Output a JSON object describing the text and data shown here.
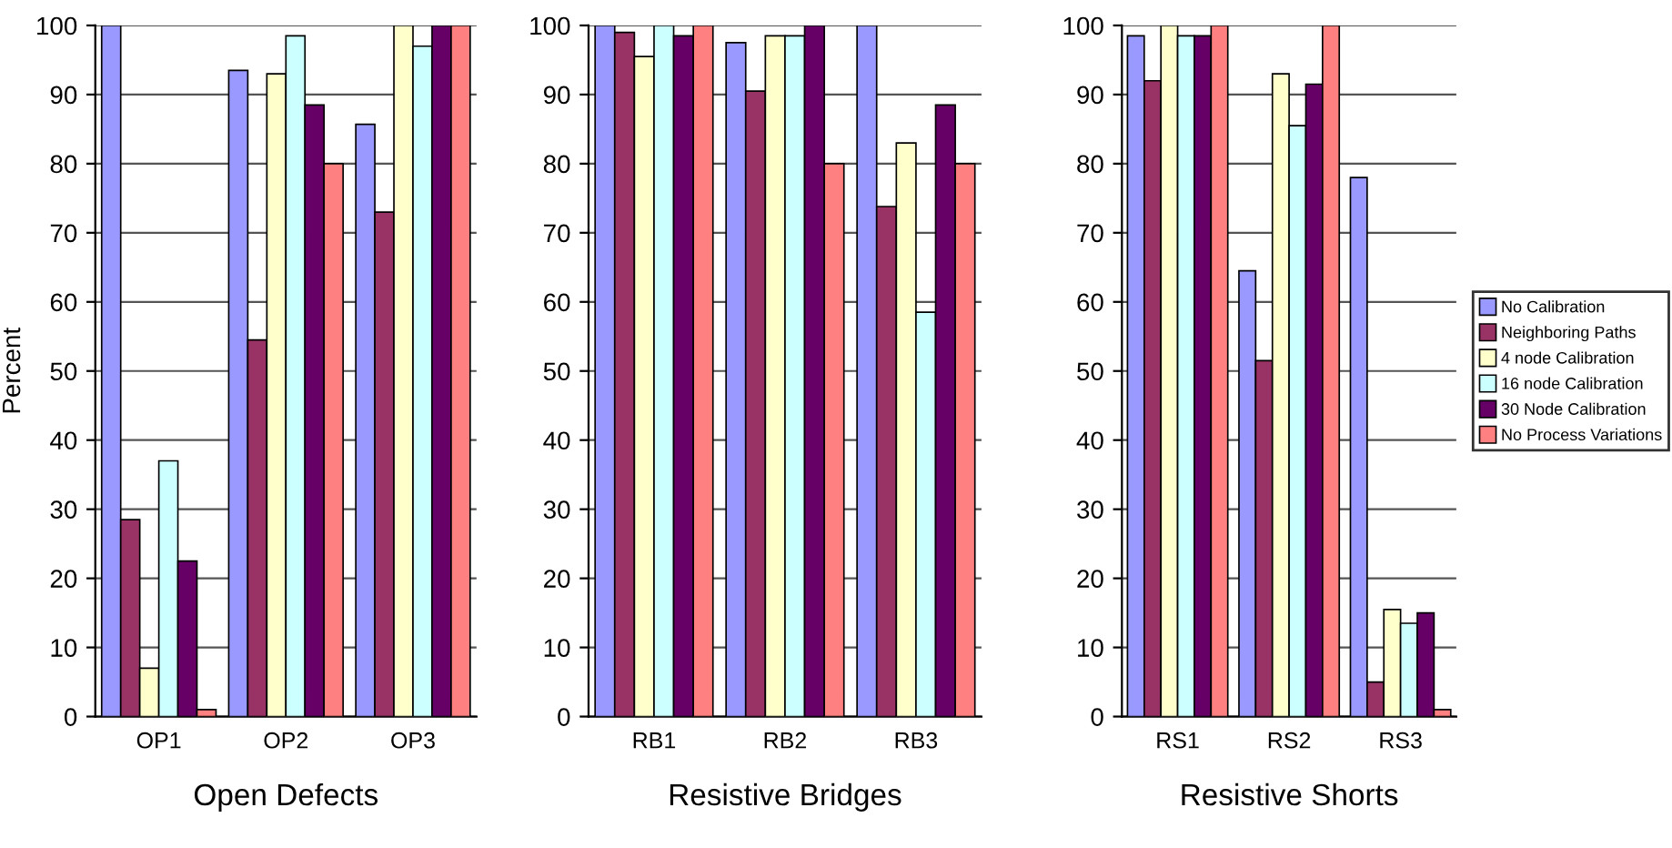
{
  "chart_data": [
    {
      "type": "bar",
      "xlabel": "Open Defects",
      "ylabel": "Percent",
      "categories": [
        "OP1",
        "OP2",
        "OP3"
      ],
      "ylim": [
        0,
        100
      ],
      "yticks": [
        0,
        10,
        20,
        30,
        40,
        50,
        60,
        70,
        80,
        90,
        100
      ],
      "grid": "y",
      "legend": false,
      "series": [
        {
          "color": "#9999ff",
          "values": [
            100,
            93.5,
            85.7
          ]
        },
        {
          "color": "#993366",
          "values": [
            28.5,
            54.5,
            73
          ]
        },
        {
          "color": "#ffffcc",
          "values": [
            7,
            93,
            100
          ]
        },
        {
          "color": "#ccffff",
          "values": [
            37,
            98.5,
            97
          ]
        },
        {
          "color": "#660066",
          "values": [
            22.5,
            88.5,
            100
          ]
        },
        {
          "color": "#ff8080",
          "values": [
            1,
            80,
            100
          ]
        }
      ]
    },
    {
      "type": "bar",
      "xlabel": "Resistive Bridges",
      "categories": [
        "RB1",
        "RB2",
        "RB3"
      ],
      "ylim": [
        0,
        100
      ],
      "yticks": [
        0,
        10,
        20,
        30,
        40,
        50,
        60,
        70,
        80,
        90,
        100
      ],
      "grid": "y",
      "legend": false,
      "series": [
        {
          "color": "#9999ff",
          "values": [
            100,
            97.5,
            100
          ]
        },
        {
          "color": "#993366",
          "values": [
            99,
            90.5,
            73.8
          ]
        },
        {
          "color": "#ffffcc",
          "values": [
            95.5,
            98.5,
            83
          ]
        },
        {
          "color": "#ccffff",
          "values": [
            100,
            98.5,
            58.5
          ]
        },
        {
          "color": "#660066",
          "values": [
            98.5,
            100,
            88.5
          ]
        },
        {
          "color": "#ff8080",
          "values": [
            100,
            80,
            80
          ]
        }
      ]
    },
    {
      "type": "bar",
      "xlabel": "Resistive Shorts",
      "categories": [
        "RS1",
        "RS2",
        "RS3"
      ],
      "ylim": [
        0,
        100
      ],
      "yticks": [
        0,
        10,
        20,
        30,
        40,
        50,
        60,
        70,
        80,
        90,
        100
      ],
      "grid": "y",
      "legend": "right",
      "series": [
        {
          "name": "No Calibration",
          "color": "#9999ff",
          "values": [
            98.5,
            64.5,
            78
          ]
        },
        {
          "name": "Neighboring Paths",
          "color": "#993366",
          "values": [
            92,
            51.5,
            5
          ]
        },
        {
          "name": "4 node Calibration",
          "color": "#ffffcc",
          "values": [
            100,
            93,
            15.5
          ]
        },
        {
          "name": "16 node Calibration",
          "color": "#ccffff",
          "values": [
            98.5,
            85.5,
            13.5
          ]
        },
        {
          "name": "30 Node Calibration",
          "color": "#660066",
          "values": [
            98.5,
            91.5,
            15
          ]
        },
        {
          "name": "No Process Variations",
          "color": "#ff8080",
          "values": [
            100,
            100,
            1
          ]
        }
      ]
    }
  ]
}
